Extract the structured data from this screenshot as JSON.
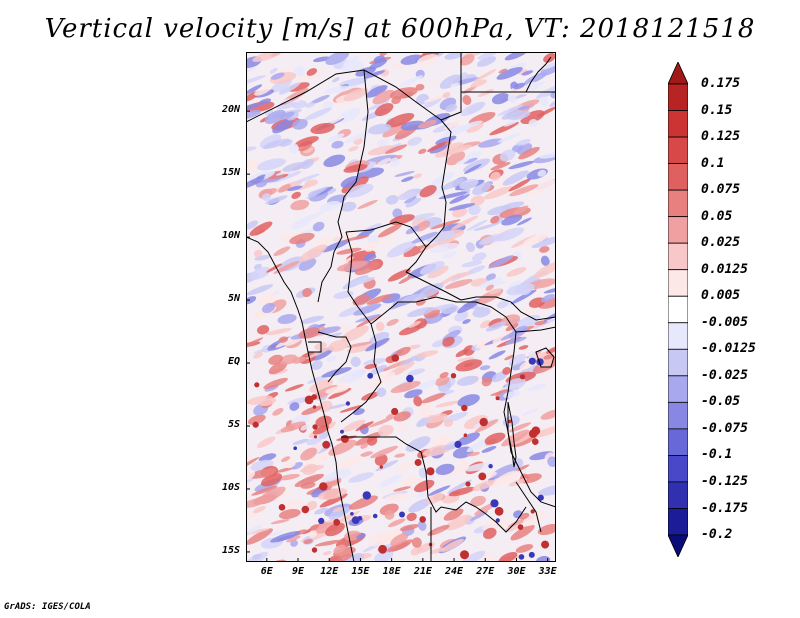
{
  "title": "Vertical velocity [m/s] at 600hPa, VT: 2018121518",
  "map": {
    "lat_labels": [
      "20N",
      "15N",
      "10N",
      "5N",
      "EQ",
      "5S",
      "10S",
      "15S"
    ],
    "lat_values": [
      20,
      15,
      10,
      5,
      0,
      -5,
      -10,
      -15
    ],
    "lon_labels": [
      "6E",
      "9E",
      "12E",
      "15E",
      "18E",
      "21E",
      "24E",
      "27E",
      "30E",
      "33E"
    ],
    "lon_values": [
      6,
      9,
      12,
      15,
      18,
      21,
      24,
      27,
      30,
      33
    ],
    "lat_range": [
      -15.8,
      24.7
    ],
    "lon_range": [
      4,
      33.8
    ]
  },
  "colorbar": {
    "labels": [
      "0.175",
      "0.15",
      "0.125",
      "0.1",
      "0.075",
      "0.05",
      "0.025",
      "0.0125",
      "0.005",
      "-0.005",
      "-0.0125",
      "-0.025",
      "-0.05",
      "-0.075",
      "-0.1",
      "-0.125",
      "-0.175",
      "-0.2"
    ],
    "colors": [
      "#a01818",
      "#b82424",
      "#cc3333",
      "#d84848",
      "#e06060",
      "#e88080",
      "#f0a0a0",
      "#f8c8c8",
      "#fde8e8",
      "#ffffff",
      "#e8e8fc",
      "#c8c8f4",
      "#a8a8ee",
      "#8888e4",
      "#6868d8",
      "#4848c8",
      "#3030b0",
      "#1c1c98",
      "#0c0c78"
    ]
  },
  "footer": "GrADS: IGES/COLA"
}
